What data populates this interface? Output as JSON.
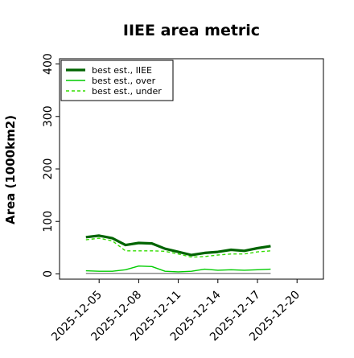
{
  "chart_data": {
    "type": "line",
    "title": "IIEE area metric",
    "xlabel": "",
    "ylabel": "Area (1000km2)",
    "x": [
      "2025-12-04",
      "2025-12-05",
      "2025-12-06",
      "2025-12-07",
      "2025-12-08",
      "2025-12-09",
      "2025-12-10",
      "2025-12-11",
      "2025-12-12",
      "2025-12-13",
      "2025-12-14",
      "2025-12-15",
      "2025-12-16",
      "2025-12-17",
      "2025-12-18"
    ],
    "xticks": [
      "2025-12-05",
      "2025-12-08",
      "2025-12-11",
      "2025-12-14",
      "2025-12-17",
      "2025-12-20"
    ],
    "xlim": [
      "2025-12-02",
      "2025-12-22"
    ],
    "yticks": [
      0,
      100,
      200,
      300,
      400
    ],
    "ylim": [
      -10,
      410
    ],
    "grid": false,
    "legend_position": "top-left",
    "series": [
      {
        "name": "best est., IIEE",
        "color": "#006400",
        "style": "solid",
        "width": "thick",
        "values": [
          70,
          73,
          68,
          55,
          59,
          58,
          48,
          42,
          36,
          40,
          42,
          46,
          44,
          49,
          53
        ]
      },
      {
        "name": "best est., over",
        "color": "#00cc00",
        "style": "solid",
        "width": "thin",
        "values": [
          6,
          5,
          5,
          8,
          15,
          14,
          5,
          4,
          5,
          9,
          7,
          8,
          7,
          8,
          9
        ]
      },
      {
        "name": "best est., under",
        "color": "#33dd00",
        "style": "dashed",
        "width": "thin",
        "values": [
          65,
          68,
          63,
          44,
          44,
          44,
          43,
          38,
          32,
          33,
          36,
          38,
          38,
          42,
          44
        ]
      },
      {
        "name": "",
        "color": "#808080",
        "style": "solid",
        "width": "thin",
        "values": [
          1,
          1,
          1,
          1,
          1,
          1,
          1,
          1,
          1,
          1,
          1,
          1,
          1,
          1,
          1
        ]
      }
    ]
  }
}
